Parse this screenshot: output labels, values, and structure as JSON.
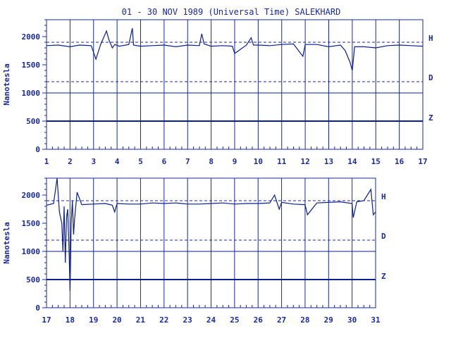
{
  "title": "01 - 30 NOV 1989 (Universal Time) SALEKHARD",
  "ylabel": "Nanotesla",
  "colors": {
    "ink": "#1a2a9c",
    "trace": "#0b1f8f"
  },
  "chart_data": [
    {
      "type": "line",
      "panel": "top",
      "x_ticks": [
        "1",
        "2",
        "3",
        "4",
        "5",
        "6",
        "7",
        "8",
        "9",
        "10",
        "11",
        "12",
        "13",
        "14",
        "15",
        "16",
        "17"
      ],
      "xlim": [
        1,
        17
      ],
      "ylim": [
        0,
        2300
      ],
      "y_ticks": [
        "0",
        "500",
        "1000",
        "1500",
        "2000"
      ],
      "y_tick_values": [
        0,
        500,
        1000,
        1500,
        2000
      ],
      "reference_lines": {
        "H": 1900,
        "D": 1200
      },
      "component_labels": [
        "H",
        "D",
        "Z"
      ],
      "series": [
        {
          "name": "H",
          "x": [
            1.0,
            1.5,
            2.0,
            2.4,
            2.9,
            3.1,
            3.3,
            3.55,
            3.65,
            3.8,
            3.9,
            4.1,
            4.5,
            4.65,
            4.7,
            5.0,
            5.5,
            6.0,
            6.5,
            7.0,
            7.5,
            7.6,
            7.7,
            8.0,
            8.5,
            8.9,
            9.0,
            9.5,
            9.7,
            9.8,
            10.0,
            10.5,
            11.0,
            11.5,
            11.9,
            12.0,
            12.5,
            13.0,
            13.5,
            13.7,
            13.9,
            14.0,
            14.1,
            14.5,
            15.0,
            15.5,
            16.0,
            16.5,
            17.0
          ],
          "y": [
            1840,
            1850,
            1820,
            1850,
            1840,
            1600,
            1860,
            2100,
            1950,
            1800,
            1860,
            1830,
            1860,
            2150,
            1850,
            1830,
            1840,
            1850,
            1820,
            1850,
            1840,
            2050,
            1870,
            1830,
            1840,
            1830,
            1700,
            1850,
            1980,
            1850,
            1850,
            1840,
            1860,
            1870,
            1650,
            1860,
            1860,
            1820,
            1850,
            1750,
            1550,
            1400,
            1820,
            1820,
            1800,
            1840,
            1850,
            1840,
            1830
          ]
        },
        {
          "name": "D",
          "x": [
            1.0,
            17.0
          ],
          "y": [
            1000,
            1000
          ]
        },
        {
          "name": "Z",
          "x": [
            1.0,
            17.0
          ],
          "y": [
            500,
            500
          ]
        }
      ]
    },
    {
      "type": "line",
      "panel": "bottom",
      "x_ticks": [
        "17",
        "18",
        "19",
        "20",
        "21",
        "22",
        "23",
        "24",
        "25",
        "26",
        "27",
        "28",
        "29",
        "30",
        "31"
      ],
      "xlim": [
        17,
        31
      ],
      "ylim": [
        0,
        2300
      ],
      "y_ticks": [
        "0",
        "500",
        "1000",
        "1500",
        "2000"
      ],
      "y_tick_values": [
        0,
        500,
        1000,
        1500,
        2000
      ],
      "reference_lines": {
        "H": 1900,
        "D": 1200
      },
      "component_labels": [
        "H",
        "D",
        "Z"
      ],
      "series": [
        {
          "name": "H",
          "x": [
            17.0,
            17.3,
            17.45,
            17.55,
            17.65,
            17.7,
            17.75,
            17.8,
            17.85,
            17.9,
            17.95,
            18.0,
            18.05,
            18.1,
            18.15,
            18.2,
            18.3,
            18.5,
            19.0,
            19.5,
            19.8,
            19.9,
            20.0,
            20.5,
            21.0,
            21.5,
            22.0,
            22.5,
            23.0,
            23.5,
            24.0,
            24.5,
            25.0,
            25.5,
            26.0,
            26.5,
            26.7,
            26.9,
            27.0,
            27.5,
            28.0,
            28.1,
            28.5,
            29.0,
            29.5,
            30.0,
            30.05,
            30.2,
            30.5,
            30.8,
            30.9,
            31.0
          ],
          "y": [
            1820,
            1850,
            2300,
            1700,
            1500,
            1000,
            1800,
            800,
            1600,
            1750,
            1150,
            300,
            1500,
            1900,
            1300,
            1600,
            2050,
            1830,
            1840,
            1850,
            1820,
            1700,
            1850,
            1840,
            1840,
            1860,
            1850,
            1860,
            1840,
            1840,
            1850,
            1860,
            1840,
            1850,
            1850,
            1860,
            2000,
            1750,
            1870,
            1840,
            1830,
            1650,
            1860,
            1870,
            1880,
            1850,
            1600,
            1880,
            1900,
            2100,
            1650,
            1700
          ]
        },
        {
          "name": "D",
          "x": [
            17.0,
            31.0
          ],
          "y": [
            1000,
            1000
          ]
        },
        {
          "name": "Z",
          "x": [
            17.0,
            31.0
          ],
          "y": [
            500,
            500
          ]
        }
      ]
    }
  ]
}
